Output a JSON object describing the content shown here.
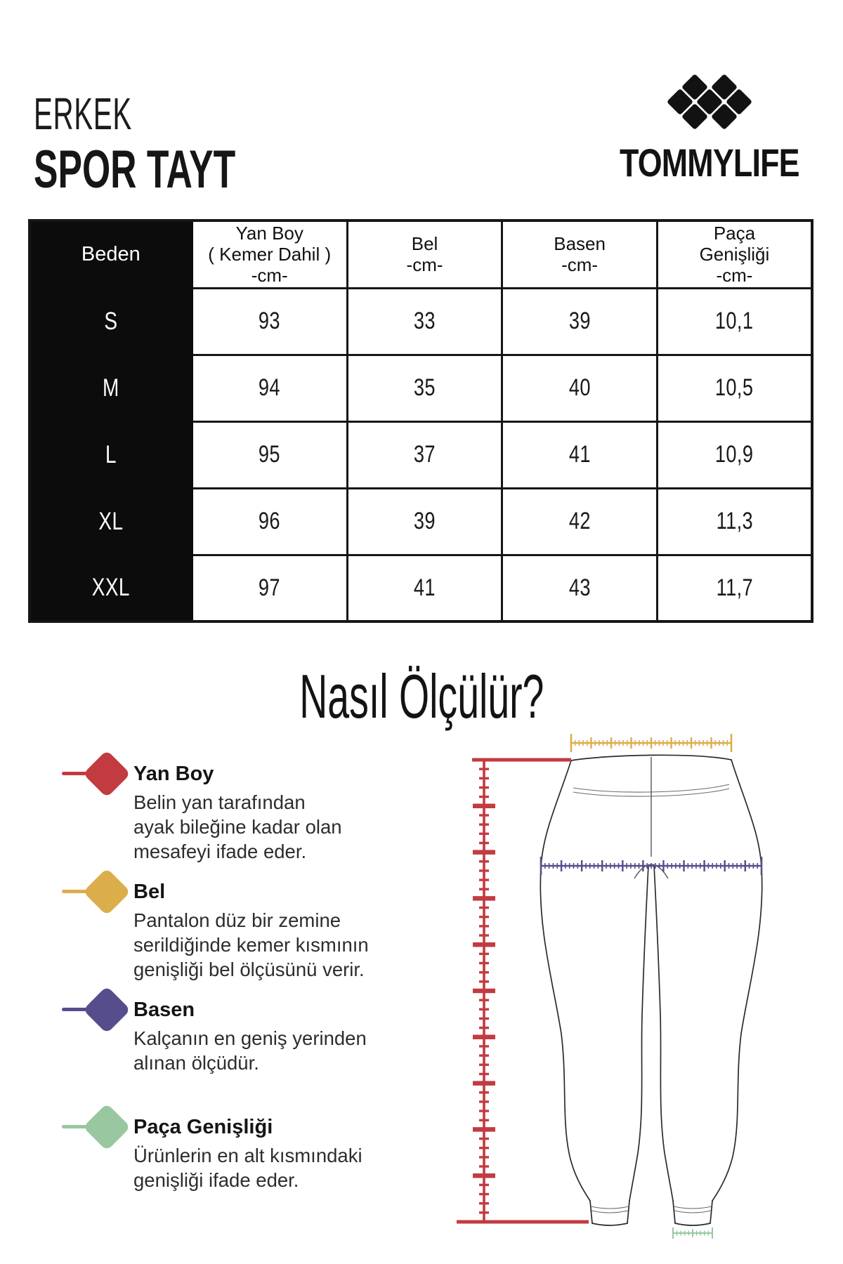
{
  "header": {
    "category": "ERKEK",
    "product": "SPOR TAYT"
  },
  "brand": {
    "name": "TOMMYLIFE",
    "logo_icon": "diamond-grid-logo"
  },
  "size_table": {
    "columns": [
      "Beden",
      "Yan Boy\n( Kemer Dahil )\n-cm-",
      "Bel\n-cm-",
      "Basen\n-cm-",
      "Paça\nGenişliği\n-cm-"
    ],
    "rows": [
      {
        "size": "S",
        "values": [
          "93",
          "33",
          "39",
          "10,1"
        ]
      },
      {
        "size": "M",
        "values": [
          "94",
          "35",
          "40",
          "10,5"
        ]
      },
      {
        "size": "L",
        "values": [
          "95",
          "37",
          "41",
          "10,9"
        ]
      },
      {
        "size": "XL",
        "values": [
          "96",
          "39",
          "42",
          "11,3"
        ]
      },
      {
        "size": "XXL",
        "values": [
          "97",
          "41",
          "43",
          "11,7"
        ]
      }
    ]
  },
  "how_to": {
    "title": "Nasıl Ölçülür?",
    "legend": [
      {
        "label": "Yan Boy",
        "description": "Belin yan tarafından\nayak bileğine kadar olan\nmesafeyi ifade eder.",
        "color": "#c23b41",
        "icon": "diamond-marker"
      },
      {
        "label": "Bel",
        "description": "Pantalon düz bir zemine\nserildiğinde kemer kısmının\ngenişliği bel ölçüsünü verir.",
        "color": "#dcae4b",
        "icon": "diamond-marker"
      },
      {
        "label": "Basen",
        "description": "Kalçanın en geniş yerinden\nalınan ölçüdür.",
        "color": "#564d8c",
        "icon": "diamond-marker"
      },
      {
        "label": "Paça Genişliği",
        "description": "Ürünlerin en alt kısmındaki\ngenişliği ifade eder.",
        "color": "#99c7a0",
        "icon": "diamond-marker"
      }
    ]
  },
  "colors": {
    "side_length_ruler": "#c23b41",
    "waist_ruler": "#dcae4b",
    "hip_ruler": "#564d8c",
    "hem_width_ruler": "#99c7a0",
    "table_header_bg": "#0c0c0c",
    "ink": "#161616"
  }
}
